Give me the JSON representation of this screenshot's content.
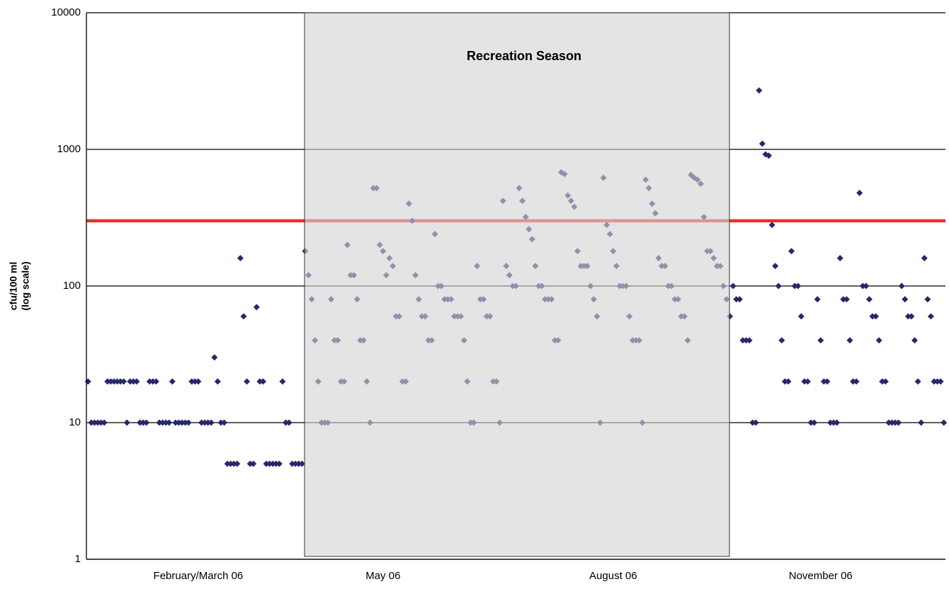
{
  "chart_data": {
    "type": "scatter",
    "yscale": "log",
    "ylim": [
      1,
      10000
    ],
    "yticks": [
      1,
      10,
      100,
      1000,
      10000
    ],
    "grid": true,
    "ylabel": [
      "cfu/100 ml",
      "(log scale)"
    ],
    "annotation": "Recreation Season",
    "color": "#27276b",
    "reference_line": {
      "value": 300,
      "color": "#e8302e"
    },
    "categories": [
      null,
      null,
      null,
      null,
      null,
      null,
      null,
      null,
      null,
      null,
      null,
      null,
      null,
      null,
      null,
      null,
      null,
      null,
      null,
      null,
      null,
      null,
      null,
      null,
      null,
      null,
      null,
      null,
      null,
      null,
      null,
      null,
      null,
      null,
      "February/March 06",
      null,
      null,
      null,
      null,
      null,
      null,
      null,
      null,
      null,
      null,
      null,
      null,
      null,
      null,
      null,
      null,
      null,
      null,
      null,
      null,
      null,
      null,
      null,
      null,
      null,
      null,
      null,
      null,
      null,
      null,
      null,
      null,
      null,
      null,
      null,
      null,
      null,
      null,
      null,
      null,
      null,
      null,
      null,
      null,
      null,
      null,
      null,
      null,
      null,
      null,
      null,
      null,
      null,
      null,
      null,
      null,
      "May 06",
      null,
      null,
      null,
      null,
      null,
      null,
      null,
      null,
      null,
      null,
      null,
      null,
      null,
      null,
      null,
      null,
      null,
      null,
      null,
      null,
      null,
      null,
      null,
      null,
      null,
      null,
      null,
      null,
      null,
      null,
      null,
      null,
      null,
      null,
      null,
      null,
      null,
      null,
      null,
      null,
      null,
      null,
      null,
      null,
      null,
      null,
      null,
      null,
      null,
      null,
      null,
      null,
      null,
      null,
      null,
      null,
      null,
      null,
      null,
      null,
      null,
      null,
      null,
      null,
      null,
      null,
      null,
      null,
      null,
      null,
      "August 06",
      null,
      null,
      null,
      null,
      null,
      null,
      null,
      null,
      null,
      null,
      null,
      null,
      null,
      null,
      null,
      null,
      null,
      null,
      null,
      null,
      null,
      null,
      null,
      null,
      null,
      null,
      null,
      null,
      null,
      null,
      null,
      null,
      null,
      null,
      null,
      null,
      null,
      null,
      null,
      null,
      null,
      null,
      null,
      null,
      null,
      null,
      null,
      null,
      null,
      null,
      null,
      null,
      null,
      null,
      null,
      null,
      null,
      null,
      null,
      null,
      null,
      null,
      null,
      "November 06",
      null,
      null,
      null,
      null,
      null,
      null,
      null,
      null,
      null,
      null,
      null,
      null,
      null,
      null,
      null,
      null,
      null,
      null,
      null,
      null,
      null,
      null,
      null,
      null,
      null,
      null,
      null,
      null,
      null,
      null,
      null,
      null,
      null,
      null,
      null,
      null,
      null,
      null
    ],
    "values": [
      20,
      10,
      10,
      10,
      10,
      10,
      20,
      20,
      20,
      20,
      20,
      20,
      10,
      20,
      20,
      20,
      10,
      10,
      10,
      20,
      20,
      20,
      10,
      10,
      10,
      10,
      20,
      10,
      10,
      10,
      10,
      10,
      20,
      20,
      20,
      10,
      10,
      10,
      10,
      30,
      20,
      10,
      10,
      5,
      5,
      5,
      5,
      160,
      60,
      20,
      5,
      5,
      70,
      20,
      20,
      5,
      5,
      5,
      5,
      5,
      20,
      10,
      10,
      5,
      5,
      5,
      5,
      180,
      120,
      80,
      40,
      20,
      10,
      10,
      10,
      80,
      40,
      40,
      20,
      20,
      200,
      120,
      120,
      80,
      40,
      40,
      20,
      10,
      520,
      520,
      200,
      180,
      120,
      160,
      140,
      60,
      60,
      20,
      20,
      400,
      300,
      120,
      80,
      60,
      60,
      40,
      40,
      240,
      100,
      100,
      80,
      80,
      80,
      60,
      60,
      60,
      40,
      20,
      10,
      10,
      140,
      80,
      80,
      60,
      60,
      20,
      20,
      10,
      420,
      140,
      120,
      100,
      100,
      520,
      420,
      320,
      260,
      220,
      140,
      100,
      100,
      80,
      80,
      80,
      40,
      40,
      680,
      660,
      460,
      420,
      380,
      180,
      140,
      140,
      140,
      100,
      80,
      60,
      10,
      620,
      280,
      240,
      180,
      140,
      100,
      100,
      100,
      60,
      40,
      40,
      40,
      10,
      600,
      520,
      400,
      340,
      160,
      140,
      140,
      100,
      100,
      80,
      80,
      60,
      60,
      40,
      650,
      620,
      600,
      560,
      320,
      180,
      180,
      160,
      140,
      140,
      100,
      80,
      60,
      100,
      80,
      80,
      40,
      40,
      40,
      10,
      10,
      2700,
      1100,
      920,
      900,
      280,
      140,
      100,
      40,
      20,
      20,
      180,
      100,
      100,
      60,
      20,
      20,
      10,
      10,
      80,
      40,
      20,
      20,
      10,
      10,
      10,
      160,
      80,
      80,
      40,
      20,
      20,
      480,
      100,
      100,
      80,
      60,
      60,
      40,
      20,
      20,
      10,
      10,
      10,
      10,
      100,
      80,
      60,
      60,
      40,
      20,
      10,
      160,
      80,
      60,
      20,
      20,
      20,
      10
    ]
  }
}
